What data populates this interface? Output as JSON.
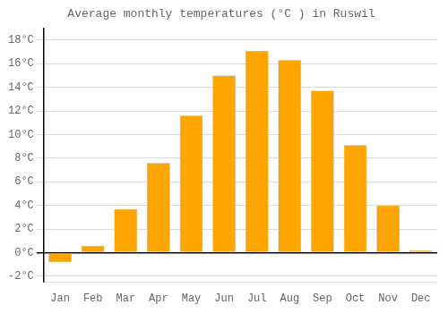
{
  "chart_data": {
    "type": "bar",
    "title": "Average monthly temperatures (°C ) in Ruswil",
    "categories": [
      "Jan",
      "Feb",
      "Mar",
      "Apr",
      "May",
      "Jun",
      "Jul",
      "Aug",
      "Sep",
      "Oct",
      "Nov",
      "Dec"
    ],
    "values": [
      -0.8,
      0.6,
      3.7,
      7.6,
      11.6,
      15.0,
      17.1,
      16.3,
      13.7,
      9.1,
      4.0,
      0.2
    ],
    "color": "#FFA500",
    "ylim": [
      -2.5,
      19
    ],
    "yticks": [
      {
        "value": -2,
        "label": "-2°C"
      },
      {
        "value": 0,
        "label": "0°C"
      },
      {
        "value": 2,
        "label": "2°C"
      },
      {
        "value": 4,
        "label": "4°C"
      },
      {
        "value": 6,
        "label": "6°C"
      },
      {
        "value": 8,
        "label": "8°C"
      },
      {
        "value": 10,
        "label": "10°C"
      },
      {
        "value": 12,
        "label": "12°C"
      },
      {
        "value": 14,
        "label": "14°C"
      },
      {
        "value": 16,
        "label": "16°C"
      },
      {
        "value": 18,
        "label": "18°C"
      }
    ],
    "grid": true
  }
}
